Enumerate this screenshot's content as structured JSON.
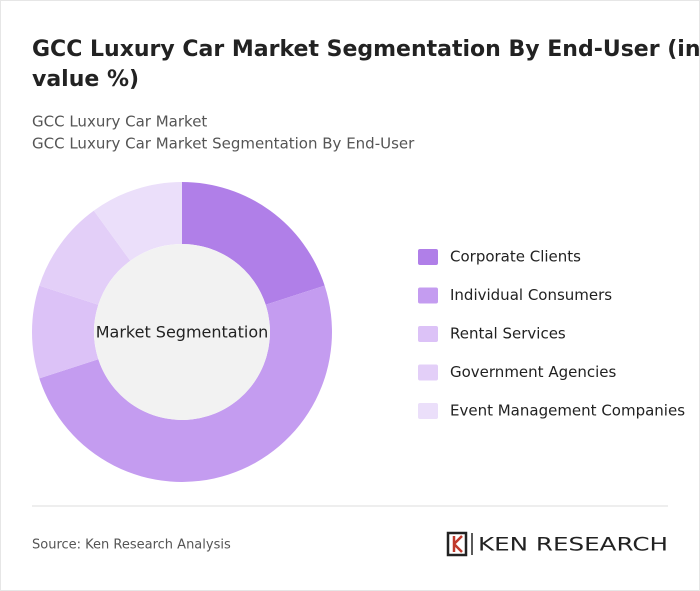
{
  "chart_data": {
    "type": "donut",
    "title": "GCC Luxury Car Market Segmentation By End-User (in value %)",
    "subtitle": [
      "GCC Luxury Car Market",
      "GCC Luxury Car Market Segmentation By End-User"
    ],
    "center_label": "Market Segmentation",
    "categories": [
      "Corporate Clients",
      "Individual Consumers",
      "Rental Services",
      "Government Agencies",
      "Event Management Companies"
    ],
    "values": [
      20,
      50,
      10,
      10,
      10
    ],
    "colors": [
      "#b07fe8",
      "#c49cf0",
      "#dcc2f7",
      "#e3cff8",
      "#ebdffa"
    ],
    "legend": "right"
  },
  "footer": {
    "source": "Source: Ken Research Analysis",
    "brand": "KEN RESEARCH"
  }
}
